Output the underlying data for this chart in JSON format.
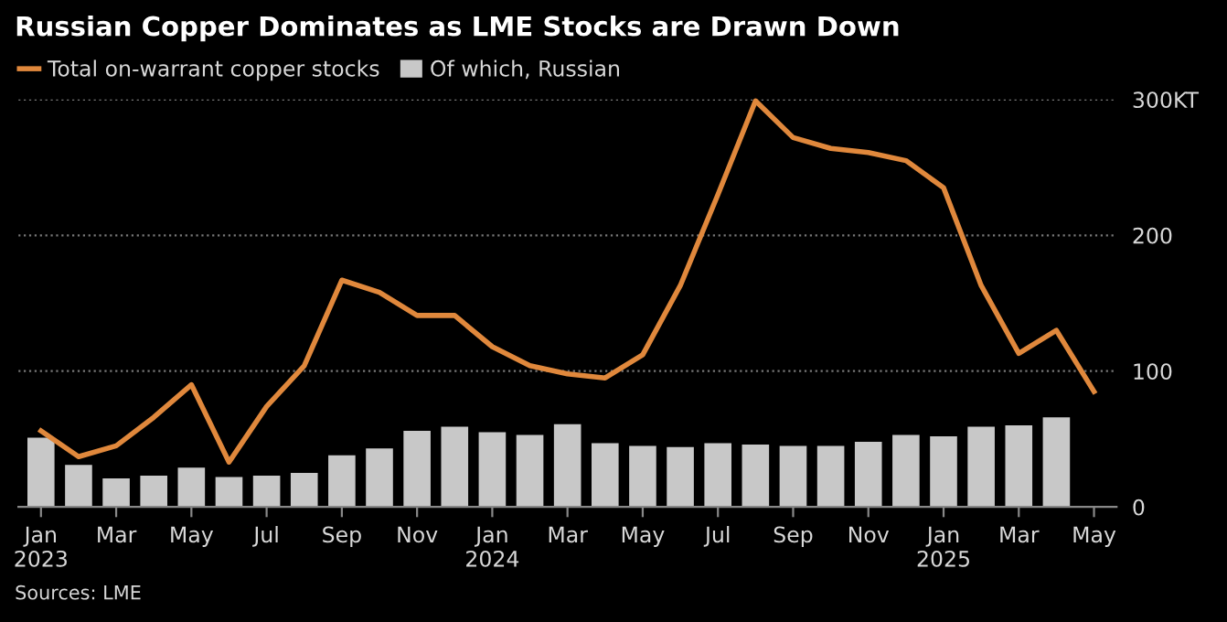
{
  "chart_data": {
    "type": "bar",
    "title": "Russian Copper Dominates as LME Stocks are Drawn Down",
    "categories": [
      "Jan\n2023",
      null,
      "Mar",
      null,
      "May",
      null,
      "Jul",
      null,
      "Sep",
      null,
      "Nov",
      null,
      "Jan\n2024",
      null,
      "Mar",
      null,
      "May",
      null,
      "Jul",
      null,
      "Sep",
      null,
      "Nov",
      null,
      "Jan\n2025",
      null,
      "Mar",
      null,
      "May"
    ],
    "series": [
      {
        "name": "Total on-warrant copper stocks",
        "type": "line",
        "color": "#e0883c",
        "values": [
          56,
          37,
          45,
          66,
          90,
          33,
          74,
          104,
          167,
          158,
          141,
          141,
          118,
          104,
          98,
          95,
          112,
          163,
          230,
          299,
          272,
          264,
          261,
          255,
          235,
          163,
          113,
          130,
          85
        ]
      },
      {
        "name": "Of which, Russian",
        "color": "#c8c8c8",
        "values": [
          51,
          31,
          21,
          23,
          29,
          22,
          23,
          25,
          38,
          43,
          56,
          59,
          55,
          53,
          61,
          47,
          45,
          44,
          47,
          46,
          45,
          45,
          48,
          53,
          52,
          59,
          60,
          66,
          null
        ]
      }
    ],
    "ylim": [
      0,
      300
    ],
    "yticks": [
      {
        "value": 0,
        "label": "0"
      },
      {
        "value": 100,
        "label": "100"
      },
      {
        "value": 200,
        "label": "200"
      },
      {
        "value": 300,
        "label": "300KT"
      }
    ],
    "grid": "y",
    "legend": "top left",
    "annotations": [
      "Sources: LME"
    ]
  }
}
